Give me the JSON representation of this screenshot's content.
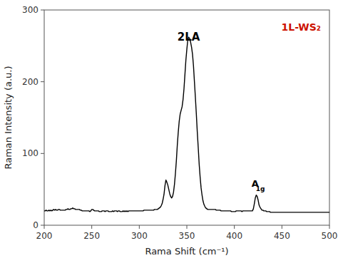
{
  "chart_data": {
    "type": "line",
    "xlabel": "Rama Shift (cm⁻¹)",
    "ylabel": "Raman Intensity (a.u.)",
    "color": "#000000",
    "xlim": [
      200,
      500
    ],
    "ylim": [
      0,
      300
    ],
    "xticks": [
      200,
      250,
      300,
      350,
      400,
      450,
      500
    ],
    "yticks": [
      0,
      100,
      200,
      300
    ],
    "grid": false,
    "annotations": [
      {
        "text": "2LA",
        "x": 352,
        "y": 255
      },
      {
        "text": "A",
        "x": 418,
        "y": 52
      },
      {
        "text": "1g",
        "x": 422.5,
        "y": 46
      },
      {
        "text": "1L-WS₂",
        "color": "#cc1100"
      }
    ],
    "x": [
      200,
      201,
      202,
      203,
      204,
      205,
      206,
      207,
      208,
      209,
      210,
      211,
      212,
      213,
      214,
      215,
      216,
      217,
      218,
      219,
      220,
      221,
      222,
      223,
      224,
      225,
      226,
      227,
      228,
      229,
      230,
      231,
      232,
      233,
      234,
      235,
      236,
      237,
      238,
      239,
      240,
      241,
      242,
      243,
      244,
      245,
      246,
      247,
      248,
      249,
      250,
      251,
      252,
      253,
      254,
      255,
      256,
      257,
      258,
      259,
      260,
      261,
      262,
      263,
      264,
      265,
      266,
      267,
      268,
      269,
      270,
      271,
      272,
      273,
      274,
      275,
      276,
      277,
      278,
      279,
      280,
      281,
      282,
      283,
      284,
      285,
      286,
      287,
      288,
      289,
      290,
      291,
      292,
      293,
      294,
      295,
      296,
      297,
      298,
      299,
      300,
      301,
      302,
      303,
      304,
      305,
      306,
      307,
      308,
      309,
      310,
      311,
      312,
      313,
      314,
      315,
      316,
      317,
      318,
      319,
      320,
      321,
      322,
      323,
      324,
      325,
      326,
      327,
      328,
      329,
      330,
      331,
      332,
      333,
      334,
      335,
      336,
      337,
      338,
      339,
      340,
      341,
      342,
      343,
      344,
      345,
      346,
      347,
      348,
      349,
      350,
      351,
      352,
      353,
      354,
      355,
      356,
      357,
      358,
      359,
      360,
      361,
      362,
      363,
      364,
      365,
      366,
      367,
      368,
      369,
      370,
      371,
      372,
      373,
      374,
      375,
      376,
      377,
      378,
      379,
      380,
      381,
      382,
      383,
      384,
      385,
      386,
      387,
      388,
      389,
      390,
      391,
      392,
      393,
      394,
      395,
      396,
      397,
      398,
      399,
      400,
      401,
      402,
      403,
      404,
      405,
      406,
      407,
      408,
      409,
      410,
      411,
      412,
      413,
      414,
      415,
      416,
      417,
      418,
      419,
      420,
      421,
      422,
      423,
      424,
      425,
      426,
      427,
      428,
      429,
      430,
      431,
      432,
      433,
      434,
      435,
      436,
      437,
      438,
      439,
      440,
      441,
      442,
      443,
      444,
      445,
      446,
      447,
      448,
      449,
      450,
      451,
      452,
      453,
      454,
      455,
      456,
      457,
      458,
      459,
      460,
      461,
      462,
      463,
      464,
      465,
      466,
      467,
      468,
      469,
      470,
      471,
      472,
      473,
      474,
      475,
      476,
      477,
      478,
      479,
      480,
      481,
      482,
      483,
      484,
      485,
      486,
      487,
      488,
      489,
      490,
      491,
      492,
      493,
      494,
      495,
      496,
      497,
      498,
      499,
      500
    ],
    "values": [
      20,
      20,
      21,
      20,
      20,
      21,
      20,
      21,
      20,
      21,
      22,
      21,
      22,
      21,
      21,
      22,
      22,
      21,
      21,
      21,
      21,
      21,
      21,
      22,
      22,
      23,
      22,
      22,
      23,
      23,
      24,
      23,
      23,
      22,
      22,
      22,
      22,
      22,
      21,
      21,
      20,
      20,
      20,
      20,
      20,
      20,
      20,
      20,
      19,
      20,
      22,
      22,
      21,
      20,
      20,
      20,
      20,
      20,
      19,
      19,
      19,
      20,
      20,
      20,
      19,
      20,
      20,
      20,
      19,
      19,
      19,
      19,
      20,
      19,
      20,
      20,
      20,
      19,
      20,
      20,
      19,
      19,
      19,
      20,
      19,
      20,
      19,
      20,
      19,
      20,
      20,
      20,
      20,
      20,
      20,
      20,
      20,
      20,
      20,
      20,
      20,
      20,
      20,
      20,
      20,
      21,
      21,
      21,
      21,
      21,
      21,
      21,
      21,
      21,
      21,
      21,
      22,
      22,
      22,
      22,
      23,
      24,
      25,
      27,
      30,
      36,
      43,
      55,
      63,
      60,
      56,
      50,
      44,
      40,
      38,
      40,
      46,
      57,
      72,
      90,
      112,
      130,
      145,
      155,
      160,
      165,
      175,
      190,
      210,
      230,
      245,
      258,
      262,
      260,
      255,
      248,
      238,
      222,
      200,
      178,
      155,
      130,
      108,
      85,
      67,
      52,
      42,
      34,
      29,
      26,
      24,
      23,
      22,
      22,
      22,
      22,
      22,
      22,
      22,
      22,
      22,
      21,
      21,
      21,
      21,
      21,
      20,
      20,
      20,
      20,
      20,
      20,
      20,
      20,
      20,
      20,
      20,
      19,
      19,
      19,
      19,
      19,
      20,
      20,
      20,
      20,
      20,
      20,
      19,
      20,
      20,
      20,
      20,
      20,
      20,
      20,
      20,
      20,
      20,
      20,
      23,
      30,
      38,
      42,
      40,
      35,
      28,
      25,
      23,
      21,
      21,
      20,
      20,
      20,
      19,
      19,
      19,
      19,
      18,
      18,
      18,
      18,
      18,
      18,
      18,
      18,
      18,
      18,
      18,
      18,
      18,
      18,
      18,
      18,
      18,
      18,
      18,
      18,
      18,
      18,
      18,
      18,
      18,
      18,
      18,
      18,
      18,
      18,
      18,
      18,
      18,
      18,
      18,
      18,
      18,
      18,
      18,
      18,
      18,
      18,
      18,
      18,
      18,
      18,
      18,
      18,
      18,
      18,
      18,
      18,
      18,
      18,
      18,
      18,
      18,
      18,
      18,
      18,
      18,
      18,
      18
    ]
  }
}
